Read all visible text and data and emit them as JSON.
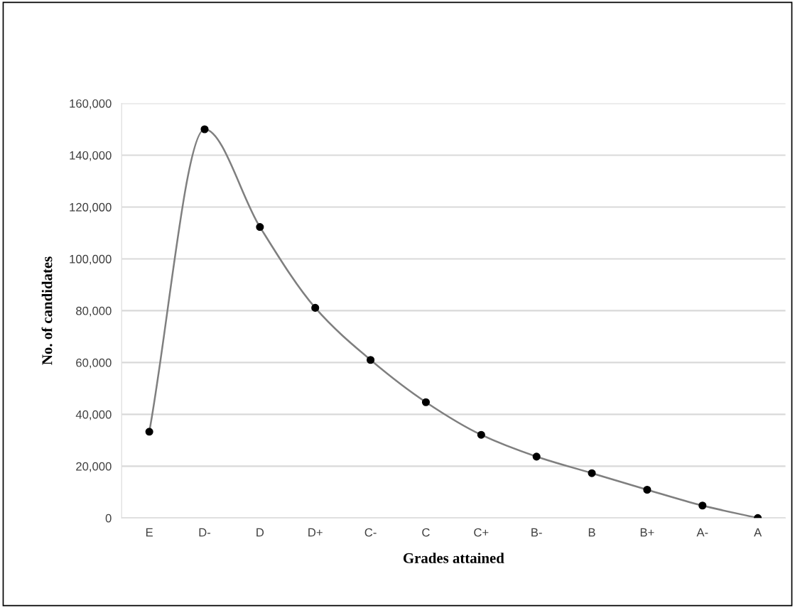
{
  "chart_data": {
    "type": "line",
    "xlabel": "Grades attained",
    "ylabel": "No. of candidates",
    "categories": [
      "E",
      "D-",
      "D",
      "D+",
      "C-",
      "C",
      "C+",
      "B-",
      "B",
      "B+",
      "A-",
      "A"
    ],
    "series": [
      {
        "color": "#7f7f7f",
        "values": [
          33300,
          150000,
          112300,
          81100,
          61000,
          44700,
          32100,
          23700,
          17300,
          10900,
          4800,
          0
        ]
      }
    ],
    "ylim": [
      0,
      160000
    ],
    "yticks": [
      0,
      {
        "value": 20000,
        "label": "20,000"
      },
      {
        "value": 40000,
        "label": "40,000"
      },
      {
        "value": 60000,
        "label": "60,000"
      },
      {
        "value": 80000,
        "label": "80,000"
      },
      {
        "value": 100000,
        "label": "100,000"
      },
      {
        "value": 120000,
        "label": "120,000"
      },
      {
        "value": 140000,
        "label": "140,000"
      },
      {
        "value": 160000,
        "label": "160,000"
      }
    ],
    "grid": "y",
    "marker": "circle",
    "line_style": "solid",
    "legend": false
  }
}
